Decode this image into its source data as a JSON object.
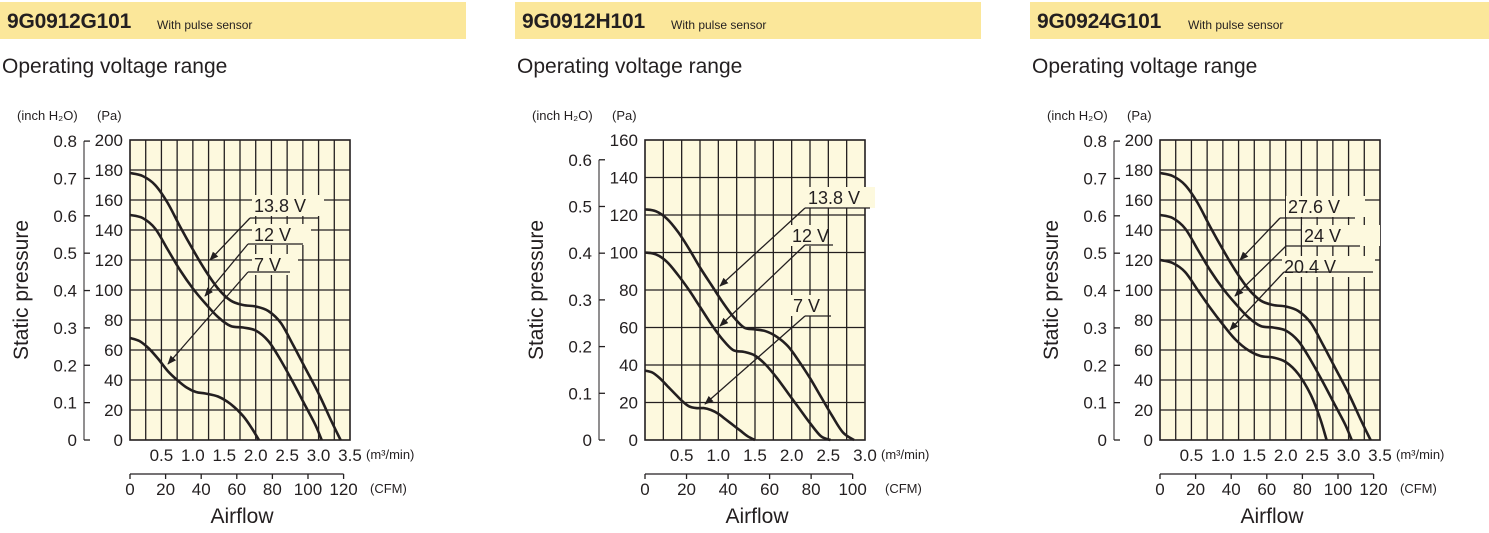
{
  "chart_data": [
    {
      "type": "line",
      "model": "9G0912G101",
      "model_note": "With pulse sensor",
      "title": "Operating voltage range",
      "xlabel": "Airflow",
      "ylabel": "Static pressure",
      "x_unit_primary": "(m³/min)",
      "x_unit_secondary": "(CFM)",
      "y_unit_left": "(inch H₂O)",
      "y_unit_right": "(Pa)",
      "xlim": [
        0,
        3.5
      ],
      "ylim": [
        0,
        200
      ],
      "xticks_primary": [
        "0.5",
        "1.0",
        "1.5",
        "2.0",
        "2.5",
        "3.0",
        "3.5"
      ],
      "xticks_secondary": [
        "0",
        "20",
        "40",
        "60",
        "80",
        "100",
        "120"
      ],
      "yticks_pa": [
        "0",
        "20",
        "40",
        "60",
        "80",
        "100",
        "120",
        "140",
        "160",
        "180",
        "200"
      ],
      "yticks_inch": [
        "0",
        "0.1",
        "0.2",
        "0.3",
        "0.4",
        "0.5",
        "0.6",
        "0.7",
        "0.8"
      ],
      "grid": true,
      "series": [
        {
          "name": "13.8 V",
          "x": [
            0,
            0.2,
            0.4,
            0.6,
            0.8,
            1.0,
            1.2,
            1.4,
            1.6,
            1.8,
            2.0,
            2.2,
            2.4,
            2.6,
            2.8,
            3.0,
            3.2,
            3.35
          ],
          "y": [
            178,
            176,
            170,
            158,
            142,
            127,
            113,
            101,
            93,
            90,
            89,
            86,
            78,
            63,
            47,
            31,
            13,
            0
          ]
        },
        {
          "name": "12 V",
          "x": [
            0,
            0.2,
            0.4,
            0.6,
            0.8,
            1.0,
            1.2,
            1.4,
            1.6,
            1.8,
            2.0,
            2.2,
            2.4,
            2.6,
            2.8,
            2.95,
            3.05
          ],
          "y": [
            150,
            148,
            141,
            127,
            113,
            101,
            91,
            82,
            76,
            75,
            73,
            66,
            53,
            38,
            22,
            10,
            0
          ]
        },
        {
          "name": "7 V",
          "x": [
            0,
            0.15,
            0.3,
            0.45,
            0.6,
            0.75,
            0.9,
            1.05,
            1.2,
            1.4,
            1.6,
            1.8,
            1.95,
            2.05
          ],
          "y": [
            68,
            66,
            61,
            54,
            46,
            40,
            35,
            32,
            31,
            29,
            24,
            16,
            7,
            0
          ]
        }
      ],
      "annotations": [
        "13.8 V",
        "12 V",
        "7 V"
      ]
    },
    {
      "type": "line",
      "model": "9G0912H101",
      "model_note": "With pulse sensor",
      "title": "Operating voltage range",
      "xlabel": "Airflow",
      "ylabel": "Static pressure",
      "x_unit_primary": "(m³/min)",
      "x_unit_secondary": "(CFM)",
      "y_unit_left": "(inch H₂O)",
      "y_unit_right": "(Pa)",
      "xlim": [
        0,
        3.0
      ],
      "ylim": [
        0,
        160
      ],
      "xticks_primary": [
        "0.5",
        "1.0",
        "1.5",
        "2.0",
        "2.5",
        "3.0"
      ],
      "xticks_secondary": [
        "0",
        "20",
        "40",
        "60",
        "80",
        "100"
      ],
      "yticks_pa": [
        "0",
        "20",
        "40",
        "60",
        "80",
        "100",
        "120",
        "140",
        "160"
      ],
      "yticks_inch": [
        "0",
        "0.1",
        "0.2",
        "0.3",
        "0.4",
        "0.5",
        "0.6"
      ],
      "grid": true,
      "series": [
        {
          "name": "13.8 V",
          "x": [
            0,
            0.15,
            0.3,
            0.45,
            0.6,
            0.75,
            0.9,
            1.05,
            1.2,
            1.35,
            1.5,
            1.65,
            1.8,
            1.95,
            2.1,
            2.25,
            2.4,
            2.55,
            2.7,
            2.85
          ],
          "y": [
            123,
            122,
            118,
            111,
            102,
            92,
            83,
            74,
            66,
            60,
            59,
            58,
            55,
            50,
            42,
            33,
            23,
            13,
            4,
            0
          ]
        },
        {
          "name": "12 V",
          "x": [
            0,
            0.15,
            0.3,
            0.45,
            0.6,
            0.75,
            0.9,
            1.05,
            1.2,
            1.35,
            1.5,
            1.65,
            1.8,
            1.95,
            2.1,
            2.25,
            2.4,
            2.53
          ],
          "y": [
            100,
            99,
            95,
            88,
            80,
            71,
            62,
            54,
            48,
            47,
            45,
            40,
            33,
            25,
            17,
            9,
            2,
            0
          ]
        },
        {
          "name": "7 V",
          "x": [
            0,
            0.1,
            0.2,
            0.3,
            0.4,
            0.5,
            0.6,
            0.7,
            0.8,
            0.9,
            1.0,
            1.1,
            1.2,
            1.3,
            1.4,
            1.5
          ],
          "y": [
            37,
            36,
            33,
            29,
            25,
            21,
            18,
            17,
            17,
            16,
            14,
            11,
            8,
            5,
            2,
            0
          ]
        }
      ],
      "annotations": [
        "13.8 V",
        "12 V",
        "7 V"
      ]
    },
    {
      "type": "line",
      "model": "9G0924G101",
      "model_note": "With pulse sensor",
      "title": "Operating voltage range",
      "xlabel": "Airflow",
      "ylabel": "Static pressure",
      "x_unit_primary": "(m³/min)",
      "x_unit_secondary": "(CFM)",
      "y_unit_left": "(inch H₂O)",
      "y_unit_right": "(Pa)",
      "xlim": [
        0,
        3.5
      ],
      "ylim": [
        0,
        200
      ],
      "xticks_primary": [
        "0.5",
        "1.0",
        "1.5",
        "2.0",
        "2.5",
        "3.0",
        "3.5"
      ],
      "xticks_secondary": [
        "0",
        "20",
        "40",
        "60",
        "80",
        "100",
        "120"
      ],
      "yticks_pa": [
        "0",
        "20",
        "40",
        "60",
        "80",
        "100",
        "120",
        "140",
        "160",
        "180",
        "200"
      ],
      "yticks_inch": [
        "0",
        "0.1",
        "0.2",
        "0.3",
        "0.4",
        "0.5",
        "0.6",
        "0.7",
        "0.8"
      ],
      "grid": true,
      "series": [
        {
          "name": "27.6 V",
          "x": [
            0,
            0.2,
            0.4,
            0.6,
            0.8,
            1.0,
            1.2,
            1.4,
            1.6,
            1.8,
            2.0,
            2.2,
            2.4,
            2.6,
            2.8,
            3.0,
            3.2,
            3.35
          ],
          "y": [
            178,
            176,
            170,
            158,
            142,
            127,
            113,
            101,
            93,
            90,
            89,
            86,
            78,
            63,
            47,
            31,
            13,
            0
          ]
        },
        {
          "name": "24 V",
          "x": [
            0,
            0.2,
            0.4,
            0.6,
            0.8,
            1.0,
            1.2,
            1.4,
            1.6,
            1.8,
            2.0,
            2.2,
            2.4,
            2.6,
            2.8,
            2.95,
            3.05
          ],
          "y": [
            150,
            148,
            141,
            127,
            113,
            101,
            91,
            82,
            76,
            75,
            73,
            66,
            53,
            38,
            22,
            10,
            0
          ]
        },
        {
          "name": "20.4 V",
          "x": [
            0,
            0.2,
            0.4,
            0.6,
            0.8,
            1.0,
            1.2,
            1.4,
            1.6,
            1.8,
            2.0,
            2.2,
            2.4,
            2.55,
            2.65
          ],
          "y": [
            120,
            118,
            112,
            100,
            88,
            77,
            67,
            60,
            56,
            55,
            52,
            44,
            30,
            14,
            0
          ]
        }
      ],
      "annotations": [
        "27.6 V",
        "24 V",
        "20.4 V"
      ]
    }
  ]
}
